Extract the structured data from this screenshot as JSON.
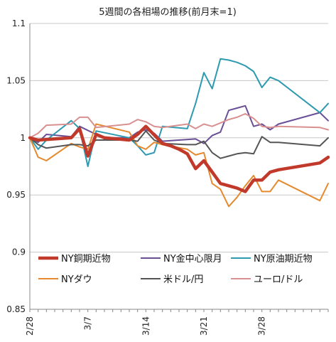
{
  "chart_data": {
    "type": "line",
    "title": "5週間の各相場の推移(前月末=1)",
    "ylim": [
      0.85,
      1.1
    ],
    "yticks": [
      "0.85",
      "0.9",
      "0.95",
      "1",
      "1.05",
      "1.1"
    ],
    "xlim": [
      0,
      36
    ],
    "x_tick_labels": [
      {
        "label": "2/28",
        "x": 0
      },
      {
        "label": "3/7",
        "x": 7
      },
      {
        "label": "3/14",
        "x": 14
      },
      {
        "label": "3/21",
        "x": 21
      },
      {
        "label": "3/28",
        "x": 28
      }
    ],
    "grid": true,
    "legend_position": "lower-left",
    "series": [
      {
        "name": "NY銅期近物",
        "color": "#c0392b",
        "x": [
          0,
          1,
          5,
          6,
          7,
          8,
          9,
          12,
          13,
          14,
          16,
          17,
          18,
          19,
          20,
          21,
          22,
          23,
          24,
          25,
          26,
          27,
          28,
          29,
          30,
          35,
          36
        ],
        "y": [
          1.0,
          0.998,
          1.0,
          1.008,
          0.984,
          1.003,
          1.0,
          0.998,
          1.003,
          1.01,
          0.995,
          0.993,
          0.99,
          0.986,
          0.973,
          0.98,
          0.97,
          0.96,
          0.958,
          0.956,
          0.953,
          0.963,
          0.963,
          0.97,
          0.972,
          0.978,
          0.983
        ]
      },
      {
        "name": "NY金中心限月",
        "color": "#6a4f96",
        "x": [
          0,
          1,
          2,
          5,
          6,
          8,
          9,
          12,
          13,
          14,
          15,
          16,
          20,
          21,
          22,
          23,
          24,
          25,
          26,
          27,
          28,
          29,
          30,
          35,
          36
        ],
        "y": [
          1.0,
          0.996,
          1.003,
          1.001,
          1.01,
          1.003,
          1.0,
          1.0,
          1.005,
          1.007,
          1.004,
          0.997,
          0.999,
          0.995,
          1.002,
          1.005,
          1.024,
          1.026,
          1.028,
          1.01,
          1.012,
          1.007,
          1.012,
          1.022,
          1.015
        ]
      },
      {
        "name": "NY原油期近物",
        "color": "#2e9ab0",
        "x": [
          0,
          1,
          2,
          5,
          6,
          7,
          8,
          12,
          13,
          14,
          15,
          16,
          19,
          20,
          21,
          22,
          23,
          24,
          25,
          26,
          27,
          28,
          29,
          30,
          35,
          36
        ],
        "y": [
          1.0,
          0.99,
          0.998,
          1.015,
          1.008,
          0.975,
          1.006,
          1.0,
          0.993,
          0.985,
          0.987,
          1.01,
          1.008,
          1.03,
          1.057,
          1.043,
          1.069,
          1.068,
          1.066,
          1.063,
          1.058,
          1.044,
          1.053,
          1.05,
          1.022,
          1.03
        ]
      },
      {
        "name": "NYダウ",
        "color": "#e58a2e",
        "x": [
          0,
          1,
          2,
          5,
          6,
          7,
          8,
          12,
          13,
          14,
          15,
          16,
          19,
          20,
          21,
          22,
          23,
          24,
          25,
          26,
          27,
          28,
          29,
          30,
          35,
          36
        ],
        "y": [
          1.0,
          0.983,
          0.98,
          0.995,
          0.992,
          0.99,
          1.012,
          1.005,
          0.993,
          0.99,
          0.996,
          0.994,
          0.99,
          0.985,
          0.987,
          0.96,
          0.955,
          0.94,
          0.948,
          0.958,
          0.967,
          0.953,
          0.953,
          0.963,
          0.945,
          0.96
        ]
      },
      {
        "name": "米ドル/円",
        "color": "#555555",
        "x": [
          0,
          1,
          2,
          5,
          6,
          7,
          8,
          12,
          13,
          14,
          15,
          16,
          19,
          20,
          21,
          22,
          23,
          24,
          25,
          26,
          27,
          28,
          29,
          30,
          35,
          36
        ],
        "y": [
          1.0,
          0.994,
          0.991,
          0.994,
          0.994,
          0.993,
          0.998,
          0.998,
          0.997,
          1.006,
          0.998,
          0.995,
          0.994,
          0.994,
          0.997,
          0.987,
          0.982,
          0.984,
          0.986,
          0.987,
          0.986,
          1.001,
          0.996,
          0.996,
          0.993,
          1.0
        ]
      },
      {
        "name": "ユーロ/ドル",
        "color": "#d99090",
        "x": [
          0,
          1,
          2,
          5,
          6,
          7,
          8,
          12,
          13,
          14,
          15,
          16,
          19,
          20,
          21,
          22,
          23,
          24,
          25,
          26,
          27,
          28,
          29,
          30,
          35,
          36
        ],
        "y": [
          1.0,
          1.004,
          1.011,
          1.012,
          1.018,
          1.018,
          1.009,
          1.012,
          1.016,
          1.014,
          1.01,
          1.009,
          1.012,
          1.008,
          1.012,
          1.01,
          1.013,
          1.016,
          1.018,
          1.021,
          1.017,
          1.01,
          1.009,
          1.01,
          1.009,
          1.007
        ]
      }
    ]
  }
}
